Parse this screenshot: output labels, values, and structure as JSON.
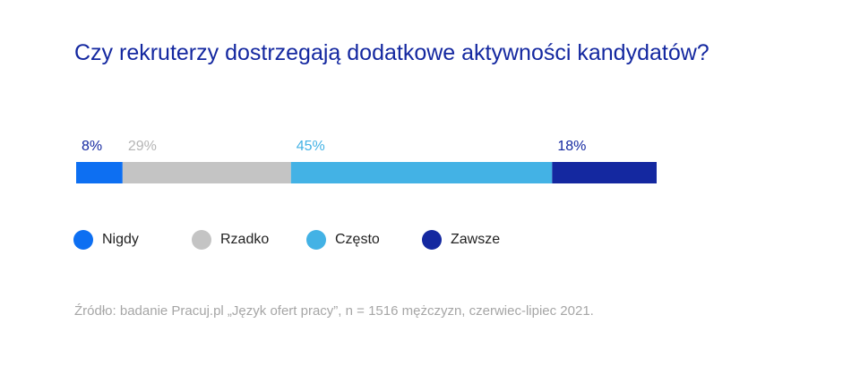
{
  "title": "Czy rekruterzy dostrzegają dodatkowe aktywności kandydatów?",
  "source": "Źródło: badanie Pracuj.pl „Język ofert pracy”, n = 1516 mężczyzn, czerwiec-lipiec 2021.",
  "chart_data": {
    "type": "bar",
    "orientation": "horizontal-stacked",
    "unit": "%",
    "categories": [
      "Nigdy",
      "Rzadko",
      "Często",
      "Zawsze"
    ],
    "values": [
      8,
      29,
      45,
      18
    ],
    "labels": [
      "8%",
      "29%",
      "45%",
      "18%"
    ],
    "colors": [
      "#0d6ff2",
      "#c4c4c4",
      "#43b2e5",
      "#1428a0"
    ],
    "label_colors": [
      "#1428a0",
      "#b5b5b5",
      "#43b2e5",
      "#1428a0"
    ],
    "legend": "bottom-left"
  }
}
